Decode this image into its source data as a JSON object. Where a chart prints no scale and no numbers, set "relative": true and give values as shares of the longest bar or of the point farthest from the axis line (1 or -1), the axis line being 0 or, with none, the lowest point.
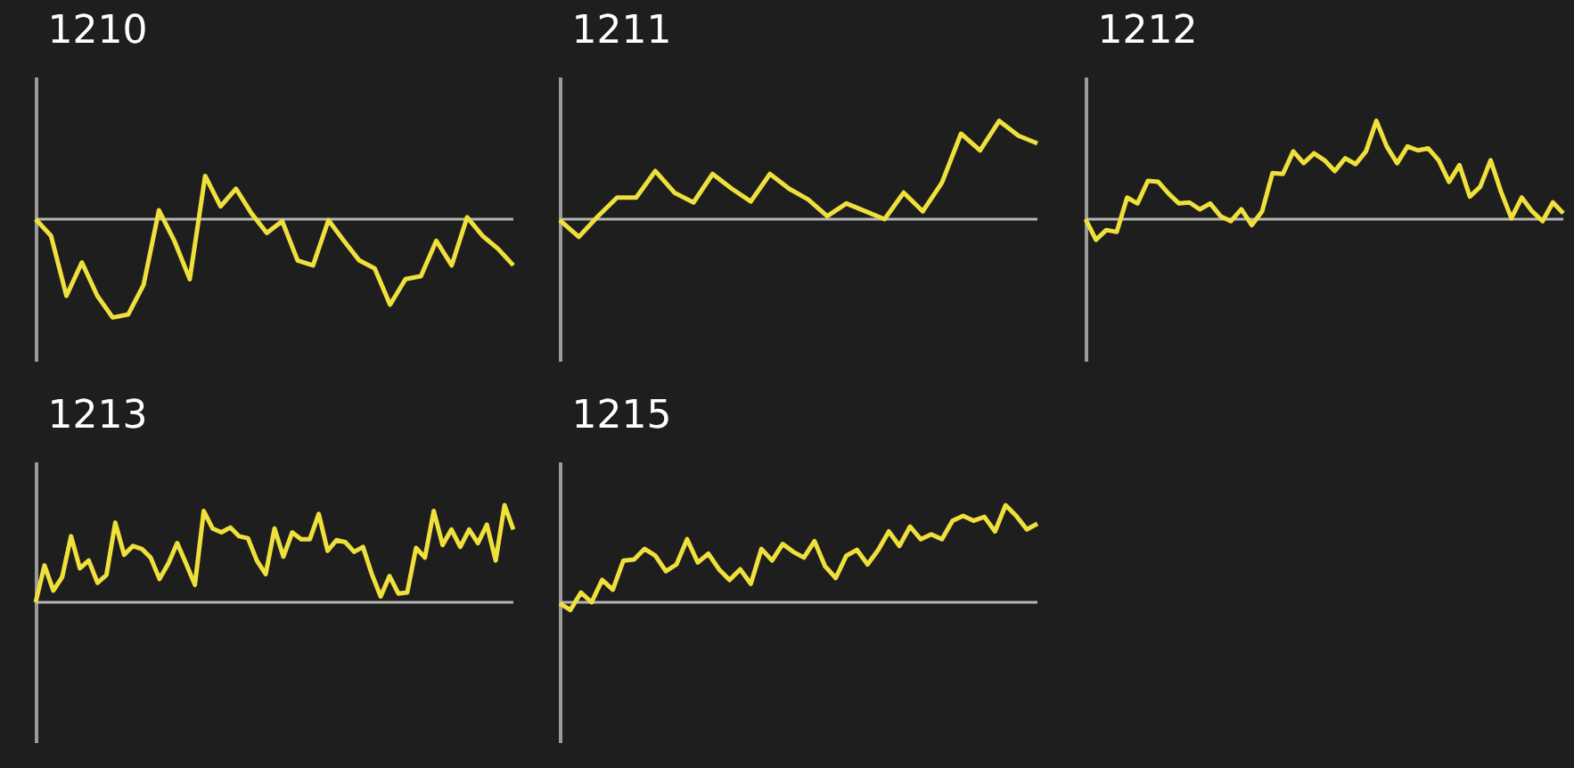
{
  "chart_data": [
    {
      "type": "line",
      "title": "1210",
      "relative": true,
      "categories": [
        null,
        null,
        null,
        null,
        null,
        null,
        null,
        null,
        null,
        null,
        null,
        null,
        null,
        null,
        null,
        null,
        null,
        null,
        null,
        null,
        null,
        null,
        null,
        null,
        null,
        null,
        null,
        null,
        null,
        null,
        null,
        null
      ],
      "series": [
        {
          "color": "#f0e03c",
          "values": [
            0,
            -0.17,
            -0.78,
            -0.44,
            -0.78,
            -1,
            -0.97,
            -0.67,
            0.09,
            -0.22,
            -0.61,
            0.44,
            0.13,
            0.31,
            0.06,
            -0.14,
            -0.02,
            -0.42,
            -0.47,
            -0.01,
            -0.22,
            -0.42,
            -0.5,
            -0.87,
            -0.61,
            -0.58,
            -0.22,
            -0.47,
            0.02,
            -0.17,
            -0.3,
            -0.47
          ]
        }
      ]
    },
    {
      "type": "line",
      "title": "1211",
      "relative": true,
      "categories": [
        null,
        null,
        null,
        null,
        null,
        null,
        null,
        null,
        null,
        null,
        null,
        null,
        null,
        null,
        null,
        null,
        null,
        null,
        null,
        null,
        null,
        null,
        null,
        null,
        null,
        null
      ],
      "series": [
        {
          "color": "#f0e03c",
          "values": [
            -0.01,
            -0.18,
            0.03,
            0.22,
            0.22,
            0.49,
            0.27,
            0.17,
            0.46,
            0.31,
            0.18,
            0.46,
            0.31,
            0.2,
            0.03,
            0.16,
            0.08,
            0,
            0.27,
            0.08,
            0.37,
            0.87,
            0.7,
            1,
            0.85,
            0.77
          ]
        }
      ]
    },
    {
      "type": "line",
      "title": "1212",
      "relative": true,
      "categories": [
        null,
        null,
        null,
        null,
        null,
        null,
        null,
        null,
        null,
        null,
        null,
        null,
        null,
        null,
        null,
        null,
        null,
        null,
        null,
        null,
        null,
        null,
        null,
        null,
        null,
        null,
        null,
        null,
        null,
        null,
        null,
        null,
        null,
        null,
        null,
        null,
        null,
        null,
        null,
        null,
        null,
        null,
        null,
        null,
        null,
        null,
        null
      ],
      "series": [
        {
          "color": "#f0e03c",
          "values": [
            0,
            -0.21,
            -0.11,
            -0.13,
            0.22,
            0.16,
            0.39,
            0.38,
            0.26,
            0.16,
            0.17,
            0.1,
            0.16,
            0.03,
            -0.02,
            0.1,
            -0.06,
            0.08,
            0.47,
            0.46,
            0.69,
            0.57,
            0.67,
            0.6,
            0.49,
            0.62,
            0.56,
            0.69,
            1,
            0.74,
            0.57,
            0.74,
            0.7,
            0.72,
            0.6,
            0.38,
            0.55,
            0.23,
            0.33,
            0.6,
            0.28,
            0.01,
            0.22,
            0.08,
            -0.02,
            0.17,
            0.06
          ]
        }
      ]
    },
    {
      "type": "line",
      "title": "1213",
      "relative": true,
      "categories": [
        null,
        null,
        null,
        null,
        null,
        null,
        null,
        null,
        null,
        null,
        null,
        null,
        null,
        null,
        null,
        null,
        null,
        null,
        null,
        null,
        null,
        null,
        null,
        null,
        null,
        null,
        null,
        null,
        null,
        null,
        null,
        null,
        null,
        null,
        null,
        null,
        null,
        null,
        null,
        null,
        null,
        null,
        null,
        null,
        null,
        null,
        null,
        null,
        null,
        null,
        null,
        null,
        null,
        null,
        null
      ],
      "series": [
        {
          "color": "#f0e03c",
          "values": [
            0,
            0.38,
            0.12,
            0.26,
            0.68,
            0.35,
            0.43,
            0.2,
            0.28,
            0.82,
            0.49,
            0.58,
            0.55,
            0.46,
            0.24,
            0.4,
            0.61,
            0.4,
            0.18,
            0.94,
            0.76,
            0.72,
            0.77,
            0.68,
            0.66,
            0.43,
            0.29,
            0.76,
            0.47,
            0.72,
            0.65,
            0.65,
            0.91,
            0.53,
            0.64,
            0.62,
            0.52,
            0.57,
            0.29,
            0.06,
            0.27,
            0.09,
            0.1,
            0.56,
            0.46,
            0.94,
            0.59,
            0.75,
            0.57,
            0.75,
            0.61,
            0.8,
            0.43,
            1,
            0.75
          ]
        }
      ]
    },
    {
      "type": "line",
      "title": "1215",
      "relative": true,
      "categories": [
        null,
        null,
        null,
        null,
        null,
        null,
        null,
        null,
        null,
        null,
        null,
        null,
        null,
        null,
        null,
        null,
        null,
        null,
        null,
        null,
        null,
        null,
        null,
        null,
        null,
        null,
        null,
        null,
        null,
        null,
        null,
        null,
        null,
        null,
        null,
        null,
        null,
        null,
        null,
        null,
        null,
        null,
        null,
        null,
        null,
        null
      ],
      "series": [
        {
          "color": "#f0e03c",
          "values": [
            -0.01,
            -0.08,
            0.1,
            0,
            0.23,
            0.13,
            0.43,
            0.44,
            0.55,
            0.48,
            0.32,
            0.39,
            0.65,
            0.41,
            0.5,
            0.34,
            0.23,
            0.34,
            0.19,
            0.55,
            0.43,
            0.6,
            0.52,
            0.46,
            0.63,
            0.37,
            0.25,
            0.48,
            0.54,
            0.39,
            0.54,
            0.73,
            0.58,
            0.78,
            0.65,
            0.7,
            0.65,
            0.84,
            0.89,
            0.84,
            0.88,
            0.73,
            1,
            0.89,
            0.75,
            0.81
          ]
        }
      ]
    }
  ]
}
